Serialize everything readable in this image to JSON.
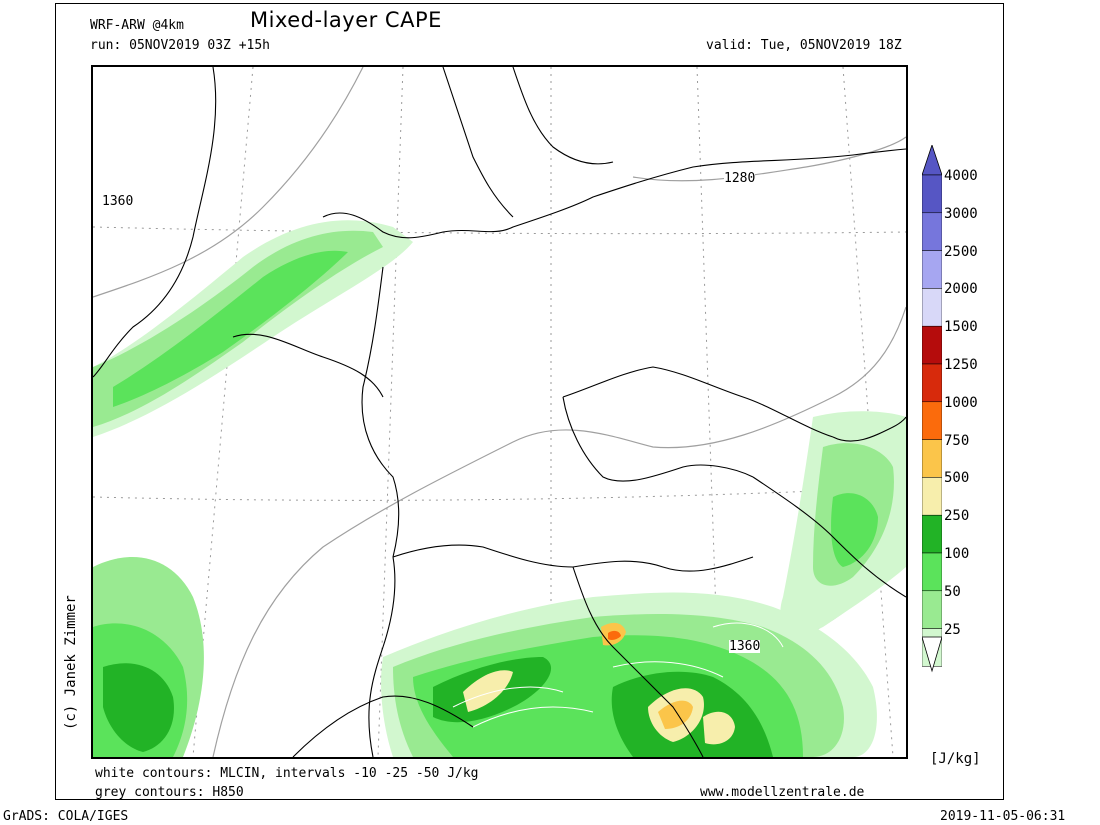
{
  "header": {
    "model": "WRF-ARW @4km",
    "title": "Mixed-layer CAPE",
    "run": "run: 05NOV2019 03Z +15h",
    "valid": "valid: Tue, 05NOV2019 18Z"
  },
  "footer": {
    "white_contours": "white contours: MLCIN, intervals -10 -25 -50 J/kg",
    "grey_contours": "grey contours: H850",
    "website": "www.modellzentrale.de",
    "software": "GrADS: COLA/IGES",
    "timestamp": "2019-11-05-06:31",
    "copyright": "(c) Janek Zimmer"
  },
  "map": {
    "contour_labels": [
      "1360",
      "1280",
      "1360"
    ],
    "colors": {
      "cape_25": "#d2f7cf",
      "cape_50": "#99ea91",
      "cape_100": "#5be35b",
      "cape_250": "#22b326",
      "cape_500": "#f7eeac",
      "cape_750": "#fbc54a",
      "cape_1000": "#fb6b0c",
      "grey_contour": "#a0a0a0"
    }
  },
  "colorbar": {
    "unit": "[J/kg]",
    "levels": [
      "4000",
      "3000",
      "2500",
      "2000",
      "1500",
      "1250",
      "1000",
      "750",
      "500",
      "250",
      "100",
      "50",
      "25"
    ],
    "colors": [
      "#5656c4",
      "#7676dc",
      "#a6a6f1",
      "#d8d8f8",
      "#b50c0c",
      "#d72a0c",
      "#fb6b0c",
      "#fbc54a",
      "#f7eeac",
      "#22b326",
      "#5be35b",
      "#99ea91",
      "#d2f7cf"
    ]
  }
}
